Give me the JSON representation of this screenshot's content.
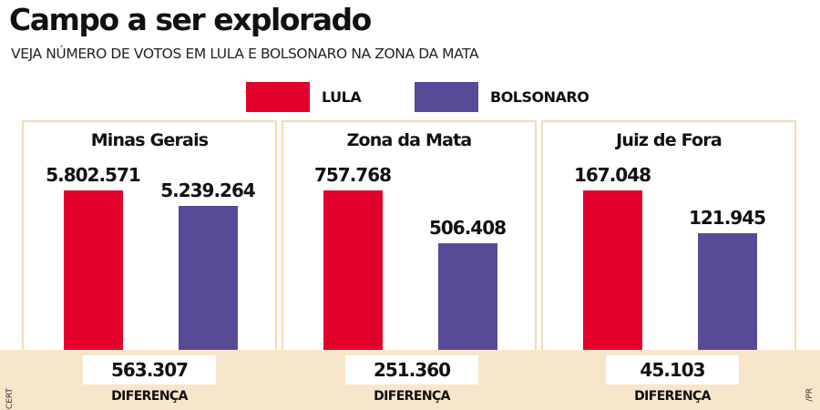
{
  "title": "Campo a ser explorado",
  "subtitle": "VEJA NÚMERO DE VOTOS EM LULA E BOLSONARO NA ZONA DA MATA",
  "legend": [
    {
      "label": "LULA",
      "color": "#e3002b"
    },
    {
      "label": "BOLSONARO",
      "color": "#574a97"
    }
  ],
  "diff_label": "DIFERENÇA",
  "credits": {
    "left": "CERT",
    "right": "/PR"
  },
  "chart_data": [
    {
      "type": "bar",
      "title": "Minas Gerais",
      "categories": [
        "LULA",
        "BOLSONARO"
      ],
      "values": [
        5802571,
        5239264
      ],
      "value_labels": [
        "5.802.571",
        "5.239.264"
      ],
      "difference": "563.307"
    },
    {
      "type": "bar",
      "title": "Zona da Mata",
      "categories": [
        "LULA",
        "BOLSONARO"
      ],
      "values": [
        757768,
        506408
      ],
      "value_labels": [
        "757.768",
        "506.408"
      ],
      "difference": "251.360"
    },
    {
      "type": "bar",
      "title": "Juiz de Fora",
      "categories": [
        "LULA",
        "BOLSONARO"
      ],
      "values": [
        167048,
        121945
      ],
      "value_labels": [
        "167.048",
        "121.945"
      ],
      "difference": "45.103"
    }
  ]
}
